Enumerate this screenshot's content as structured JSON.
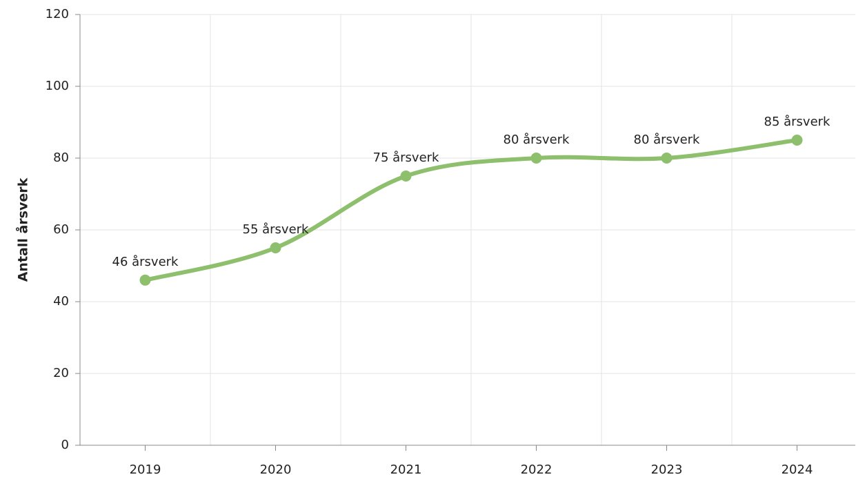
{
  "chart_data": {
    "type": "line",
    "y_label": "Antall årsverk",
    "categories": [
      "2019",
      "2020",
      "2021",
      "2022",
      "2023",
      "2024"
    ],
    "values": [
      46,
      55,
      75,
      80,
      80,
      85
    ],
    "value_labels": [
      "46 årsverk",
      "55 årsverk",
      "75 årsverk",
      "80 årsverk",
      "80 årsverk",
      "85 årsverk"
    ],
    "color": "#8dbf6c",
    "smooth": true,
    "ylim": [
      0,
      120
    ],
    "yticks": [
      0,
      20,
      40,
      60,
      80,
      100,
      120
    ],
    "grid": true
  }
}
